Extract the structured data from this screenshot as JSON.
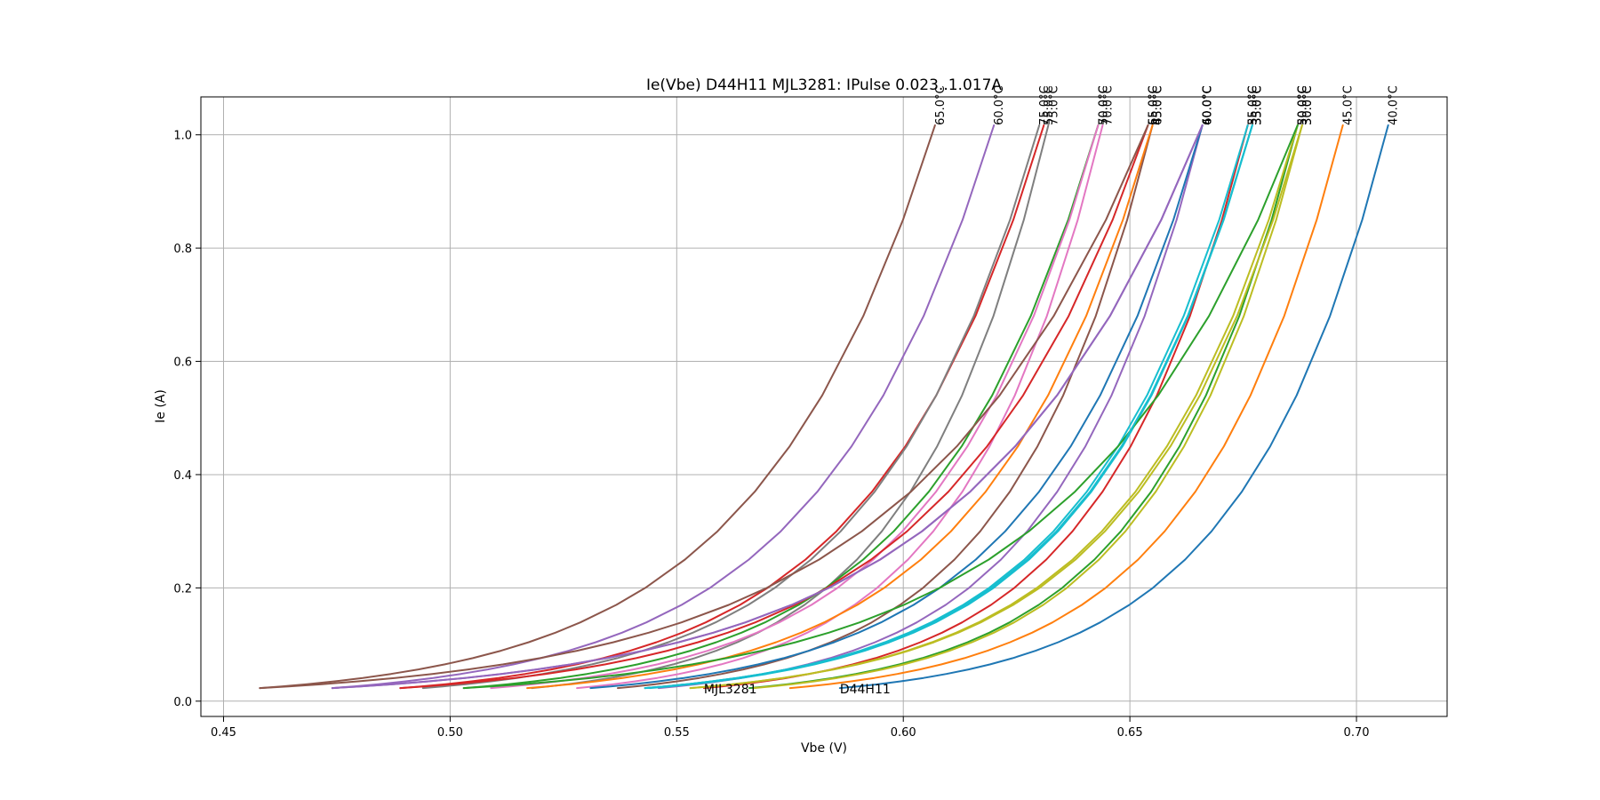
{
  "chart_data": {
    "type": "line",
    "title": "Ie(Vbe) D44H11 MJL3281: IPulse 0.023..1.017A",
    "xlabel": "Vbe (V)",
    "ylabel": "Ie (A)",
    "xlim": [
      0.445,
      0.72
    ],
    "ylim": [
      -0.027,
      1.067
    ],
    "xticks": [
      0.45,
      0.5,
      0.55,
      0.6,
      0.65,
      0.7
    ],
    "xtick_labels": [
      "0.45",
      "0.50",
      "0.55",
      "0.60",
      "0.65",
      "0.70"
    ],
    "yticks": [
      0.0,
      0.2,
      0.4,
      0.6,
      0.8,
      1.0
    ],
    "ytick_labels": [
      "0.0",
      "0.2",
      "0.4",
      "0.6",
      "0.8",
      "1.0"
    ],
    "grid": true,
    "ie_points": [
      0.023,
      0.026,
      0.03,
      0.035,
      0.041,
      0.048,
      0.056,
      0.065,
      0.076,
      0.089,
      0.104,
      0.121,
      0.139,
      0.17,
      0.2,
      0.25,
      0.3,
      0.37,
      0.45,
      0.54,
      0.68,
      0.85,
      1.017
    ],
    "annotations": [
      {
        "text": "MJL3281",
        "x": 0.556,
        "y": 0.022
      },
      {
        "text": "D44H11",
        "x": 0.586,
        "y": 0.022
      }
    ],
    "series": [
      {
        "name": "40.0°C",
        "color": "#1f77b4",
        "vbe_min": 0.586,
        "vbe_max": 0.707
      },
      {
        "name": "45.0°C",
        "color": "#ff7f0e",
        "vbe_min": 0.575,
        "vbe_max": 0.697
      },
      {
        "name": "50.0°C",
        "color": "#2ca02c",
        "vbe_min": 0.566,
        "vbe_max": 0.687
      },
      {
        "name": "55.0°C",
        "color": "#d62728",
        "vbe_min": 0.556,
        "vbe_max": 0.676
      },
      {
        "name": "60.0°C",
        "color": "#9467bd",
        "vbe_min": 0.546,
        "vbe_max": 0.666
      },
      {
        "name": "65.0°C",
        "color": "#8c564b",
        "vbe_min": 0.537,
        "vbe_max": 0.655
      },
      {
        "name": "70.0°C",
        "color": "#e377c2",
        "vbe_min": 0.528,
        "vbe_max": 0.644
      },
      {
        "name": "75.0°C",
        "color": "#7f7f7f",
        "vbe_min": 0.518,
        "vbe_max": 0.632
      },
      {
        "name": "30.0°C",
        "color": "#bcbd22",
        "vbe_min": 0.567,
        "vbe_max": 0.688
      },
      {
        "name": "35.0°C",
        "color": "#17becf",
        "vbe_min": 0.544,
        "vbe_max": 0.677
      },
      {
        "name": "40.0°C",
        "color": "#1f77b4",
        "vbe_min": 0.531,
        "vbe_max": 0.666
      },
      {
        "name": "45.0°C",
        "color": "#ff7f0e",
        "vbe_min": 0.517,
        "vbe_max": 0.655
      },
      {
        "name": "50.0°C",
        "color": "#2ca02c",
        "vbe_min": 0.503,
        "vbe_max": 0.643
      },
      {
        "name": "55.0°C",
        "color": "#d62728",
        "vbe_min": 0.489,
        "vbe_max": 0.631
      },
      {
        "name": "60.0°C",
        "color": "#9467bd",
        "vbe_min": 0.474,
        "vbe_max": 0.62
      },
      {
        "name": "65.0°C",
        "color": "#8c564b",
        "vbe_min": 0.458,
        "vbe_max": 0.607
      },
      {
        "name": "70.0°C",
        "color": "#e377c2",
        "vbe_min": 0.509,
        "vbe_max": 0.643
      },
      {
        "name": "75.0°C",
        "color": "#7f7f7f",
        "vbe_min": 0.494,
        "vbe_max": 0.63
      },
      {
        "name": "30.0°C",
        "color": "#bcbd22",
        "vbe_min": 0.553,
        "vbe_max": 0.687
      },
      {
        "name": "35.0°C",
        "color": "#17becf",
        "vbe_min": 0.543,
        "vbe_max": 0.676
      },
      {
        "name": "50.0°C",
        "color": "#2ca02c",
        "vbe_min": 0.503,
        "vbe_max": 0.687
      },
      {
        "name": "55.0°C",
        "color": "#d62728",
        "vbe_min": 0.489,
        "vbe_max": 0.654
      },
      {
        "name": "60.0°C",
        "color": "#9467bd",
        "vbe_min": 0.474,
        "vbe_max": 0.666
      },
      {
        "name": "65.0°C",
        "color": "#8c564b",
        "vbe_min": 0.458,
        "vbe_max": 0.654
      },
      {
        "name": "35.0°C",
        "color": "#17becf",
        "vbe_min": 0.543,
        "vbe_max": 0.677
      },
      {
        "name": "30.0°C",
        "color": "#bcbd22",
        "vbe_min": 0.553,
        "vbe_max": 0.688
      },
      {
        "name": "60.0°C",
        "color": "#9467bd",
        "vbe_min": 0.474,
        "vbe_max": 0.666
      },
      {
        "name": "35.0°C",
        "color": "#17becf",
        "vbe_min": 0.543,
        "vbe_max": 0.677
      }
    ]
  }
}
